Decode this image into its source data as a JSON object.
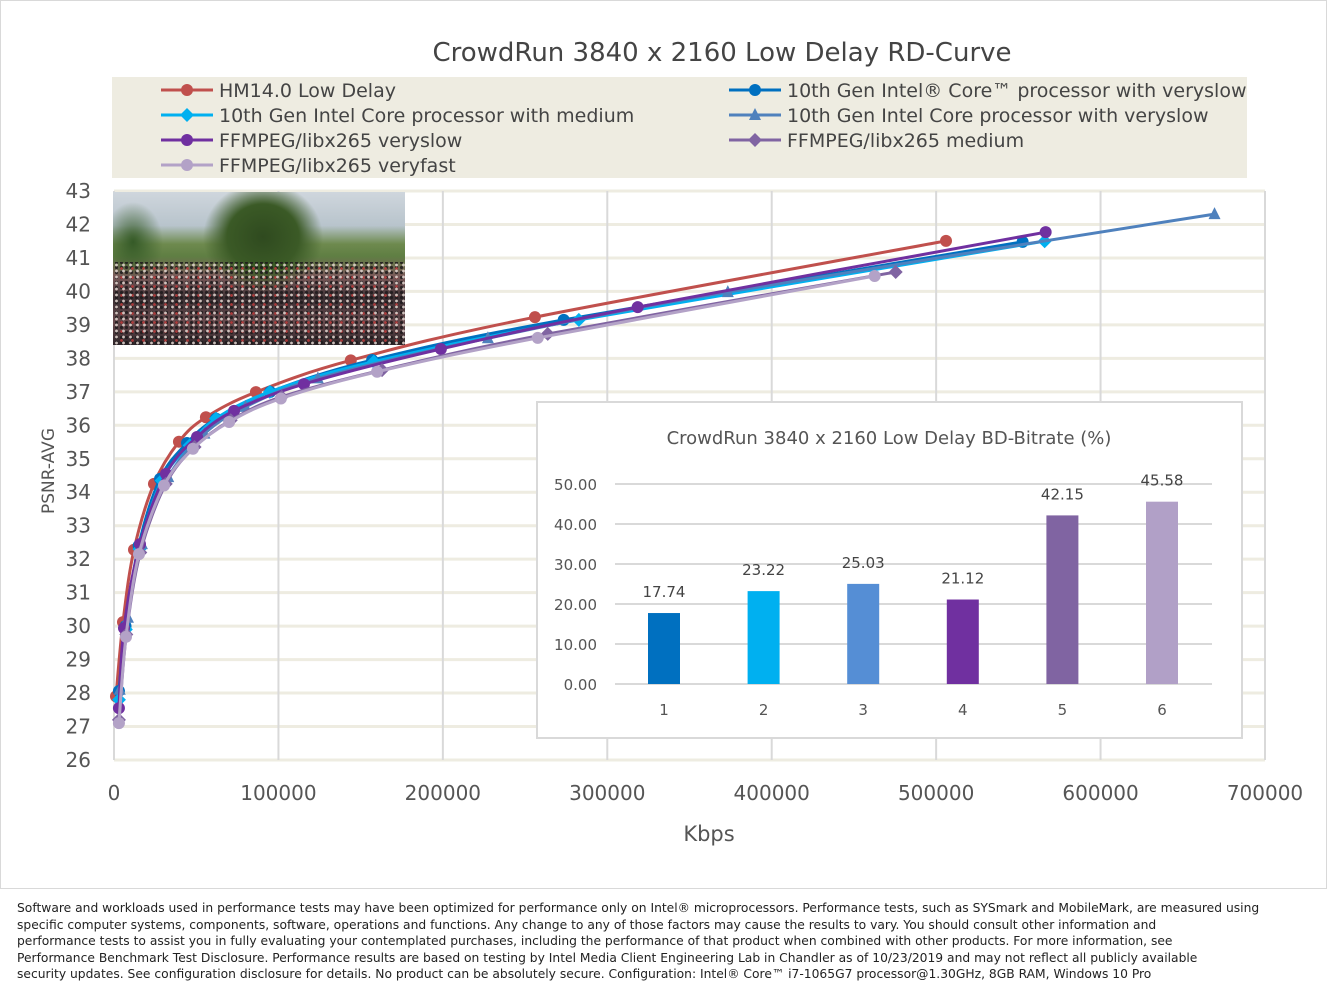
{
  "chart_data": [
    {
      "type": "line",
      "title": "CrowdRun 3840 x 2160 Low Delay RD-Curve",
      "xlabel": "Kbps",
      "ylabel": "PSNR-AVG",
      "xlim": [
        0,
        700000
      ],
      "ylim": [
        26,
        43
      ],
      "xticks": [
        "0",
        "100000",
        "200000",
        "300000",
        "400000",
        "500000",
        "600000",
        "700000"
      ],
      "yticks": [
        "26",
        "27",
        "28",
        "29",
        "30",
        "31",
        "32",
        "33",
        "34",
        "35",
        "36",
        "37",
        "38",
        "39",
        "40",
        "41",
        "42",
        "43"
      ],
      "grid": true,
      "legend_position": "top",
      "series": [
        {
          "name": "HM14.0 Low Delay",
          "color": "#C0504D",
          "marker": "circle",
          "x": [
            1200,
            5470,
            12160,
            24300,
            39500,
            55900,
            86300,
            144000,
            256000,
            506000
          ],
          "y": [
            27.9,
            30.12,
            32.28,
            34.25,
            35.51,
            36.24,
            36.99,
            37.94,
            39.23,
            41.51
          ]
        },
        {
          "name": "10th Gen Intel® Core™ processor with veryslow",
          "color": "#0070C0",
          "marker": "circle",
          "x": [
            3000,
            7000,
            15000,
            28000,
            44400,
            62000,
            95000,
            157000,
            273500,
            552600
          ],
          "y": [
            28.06,
            30.0,
            32.4,
            34.4,
            35.47,
            36.2,
            37.0,
            37.95,
            39.15,
            41.48
          ]
        },
        {
          "name": "10th Gen Intel Core processor with medium",
          "color": "#00B0F0",
          "marker": "diamond",
          "x": [
            3000,
            7200,
            15500,
            29000,
            46000,
            62000,
            94800,
            158000,
            282700,
            566000
          ],
          "y": [
            27.8,
            29.9,
            32.3,
            34.35,
            35.4,
            36.2,
            37.0,
            37.9,
            39.15,
            41.5
          ]
        },
        {
          "name": "10th Gen Intel Core processor with veryslow",
          "color": "#4F81BD",
          "marker": "triangle",
          "x": [
            3500,
            8500,
            17000,
            33000,
            55000,
            80000,
            124000,
            227400,
            373300,
            669300
          ],
          "y": [
            28.1,
            30.25,
            32.45,
            34.45,
            35.75,
            36.55,
            37.4,
            38.6,
            39.98,
            42.31
          ]
        },
        {
          "name": "FFMPEG/libx265 veryslow",
          "color": "#7030A0",
          "marker": "circle",
          "x": [
            3000,
            6080,
            15800,
            31600,
            50500,
            73000,
            115500,
            198800,
            318500,
            566600
          ],
          "y": [
            27.55,
            29.94,
            32.45,
            34.55,
            35.65,
            36.43,
            37.23,
            38.28,
            39.53,
            41.77
          ]
        },
        {
          "name": "FFMPEG/libx265 medium",
          "color": "#8064A2",
          "marker": "diamond",
          "x": [
            3000,
            7500,
            16000,
            31500,
            49000,
            71000,
            102000,
            163000,
            263800,
            475400
          ],
          "y": [
            27.2,
            29.75,
            32.2,
            34.25,
            35.35,
            36.15,
            36.85,
            37.65,
            38.73,
            40.58
          ]
        },
        {
          "name": "FFMPEG/libx265 veryfast",
          "color": "#B3A2C7",
          "marker": "circle",
          "x": [
            3000,
            7300,
            15200,
            30400,
            48000,
            70000,
            101500,
            160000,
            257700,
            462600
          ],
          "y": [
            27.1,
            29.68,
            32.15,
            34.2,
            35.3,
            36.1,
            36.8,
            37.6,
            38.61,
            40.46
          ]
        }
      ]
    },
    {
      "type": "bar",
      "title": "CrowdRun 3840 x 2160 Low Delay BD-Bitrate (%)",
      "categories": [
        "1",
        "2",
        "3",
        "4",
        "5",
        "6"
      ],
      "values": [
        17.74,
        23.22,
        25.03,
        21.12,
        42.15,
        45.58
      ],
      "value_labels": [
        "17.74",
        "23.22",
        "25.03",
        "21.12",
        "42.15",
        "45.58"
      ],
      "colors": [
        "#0070C0",
        "#00B0F0",
        "#558ED5",
        "#7030A0",
        "#8064A2",
        "#B1A0C7"
      ],
      "ylim": [
        0,
        50
      ],
      "yticks": [
        "0.00",
        "10.00",
        "20.00",
        "30.00",
        "40.00",
        "50.00"
      ],
      "grid": true
    }
  ],
  "legend_bg": "#EEECE1",
  "footer": {
    "lines": [
      "Software and workloads used in performance tests may have been optimized for performance only on Intel® microprocessors. Performance tests, such as SYSmark and MobileMark, are measured using",
      "specific computer systems, components, software, operations and functions. Any change to any of those factors may cause the results to vary. You should consult other information and",
      "performance tests to assist you in fully evaluating your contemplated purchases, including the performance of that product when combined with other products. For more information, see",
      "Performance Benchmark Test Disclosure. Performance results are based on testing by Intel Media Client Engineering Lab in Chandler as of 10/23/2019 and may not reflect all publicly available",
      "security updates. See configuration disclosure for details. No product can be absolutely secure. Configuration: Intel® Core™ i7-1065G7 processor@1.30GHz, 8GB RAM, Windows 10 Pro"
    ]
  }
}
